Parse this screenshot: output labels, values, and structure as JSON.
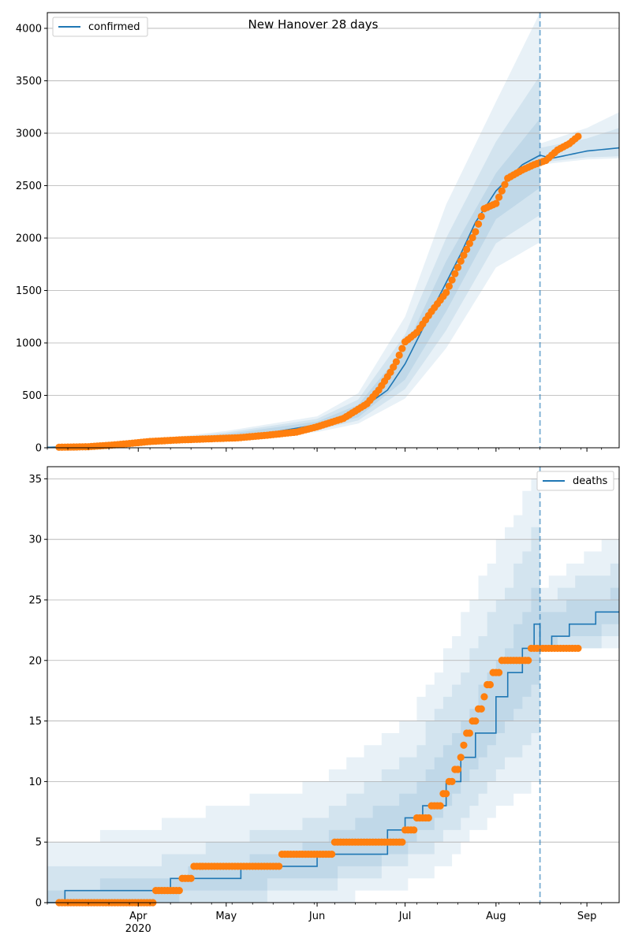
{
  "colors": {
    "model": "#1f77b4",
    "observed": "#ff7f0e",
    "band": "#1f77b4",
    "grid": "#b0b0b0"
  },
  "chart_data": [
    {
      "type": "line",
      "title": "New Hanover 28 days",
      "legend": {
        "label": "confirmed",
        "placement": "top-left"
      },
      "xlim": [
        "2020-03-01",
        "2020-09-12"
      ],
      "ylim": [
        0,
        4150
      ],
      "yticks": [
        0,
        500,
        1000,
        1500,
        2000,
        2500,
        3000,
        3500,
        4000
      ],
      "ytick_labels": [
        "0",
        "500",
        "1000",
        "1500",
        "2000",
        "2500",
        "3000",
        "3500",
        "4000"
      ],
      "grid": "horizontal",
      "forecast_start": "2020-08-16",
      "model": {
        "x": [
          "2020-03-01",
          "2020-03-15",
          "2020-04-01",
          "2020-04-15",
          "2020-05-01",
          "2020-05-15",
          "2020-06-01",
          "2020-06-15",
          "2020-06-25",
          "2020-07-01",
          "2020-07-10",
          "2020-07-20",
          "2020-07-25",
          "2020-08-01",
          "2020-08-10",
          "2020-08-16",
          "2020-08-20",
          "2020-09-01",
          "2020-09-12"
        ],
        "y": [
          5,
          15,
          40,
          80,
          110,
          140,
          220,
          350,
          550,
          800,
          1300,
          1850,
          2150,
          2450,
          2700,
          2790,
          2760,
          2830,
          2860
        ]
      },
      "bands": [
        {
          "x": [
            "2020-03-01",
            "2020-04-01",
            "2020-05-01",
            "2020-06-01",
            "2020-06-15",
            "2020-07-01",
            "2020-07-15",
            "2020-08-01",
            "2020-08-16"
          ],
          "lower": [
            5,
            30,
            90,
            190,
            290,
            650,
            1300,
            2180,
            2480
          ],
          "upper": [
            5,
            50,
            130,
            250,
            410,
            950,
            1780,
            2620,
            3140
          ]
        },
        {
          "x": [
            "2020-03-01",
            "2020-04-01",
            "2020-05-01",
            "2020-06-01",
            "2020-06-15",
            "2020-07-01",
            "2020-07-15",
            "2020-08-01",
            "2020-08-16"
          ],
          "lower": [
            5,
            25,
            80,
            170,
            260,
            560,
            1120,
            1950,
            2220
          ],
          "upper": [
            5,
            55,
            145,
            275,
            460,
            1080,
            2000,
            2920,
            3550
          ]
        },
        {
          "x": [
            "2020-03-01",
            "2020-04-01",
            "2020-05-01",
            "2020-06-01",
            "2020-06-15",
            "2020-07-01",
            "2020-07-15",
            "2020-08-01",
            "2020-08-16"
          ],
          "lower": [
            5,
            20,
            70,
            150,
            230,
            470,
            950,
            1720,
            1960
          ],
          "upper": [
            5,
            65,
            160,
            300,
            520,
            1250,
            2320,
            3300,
            4150
          ]
        },
        {
          "x": [
            "2020-08-16",
            "2020-09-01",
            "2020-09-12"
          ],
          "lower": [
            2720,
            2770,
            2780
          ],
          "upper": [
            2860,
            2950,
            3050
          ]
        },
        {
          "x": [
            "2020-08-16",
            "2020-09-01",
            "2020-09-12"
          ],
          "lower": [
            2700,
            2750,
            2760
          ],
          "upper": [
            2900,
            3050,
            3200
          ]
        }
      ],
      "observed": {
        "x": [
          "2020-03-05",
          "2020-03-15",
          "2020-03-25",
          "2020-04-05",
          "2020-04-15",
          "2020-04-25",
          "2020-05-05",
          "2020-05-15",
          "2020-05-25",
          "2020-06-01",
          "2020-06-10",
          "2020-06-18",
          "2020-06-22",
          "2020-06-26",
          "2020-06-28",
          "2020-07-01",
          "2020-07-05",
          "2020-07-10",
          "2020-07-15",
          "2020-07-20",
          "2020-07-25",
          "2020-07-28",
          "2020-08-01",
          "2020-08-05",
          "2020-08-10",
          "2020-08-14",
          "2020-08-18",
          "2020-08-22",
          "2020-08-26",
          "2020-08-29"
        ],
        "y": [
          5,
          10,
          30,
          60,
          75,
          85,
          95,
          120,
          150,
          200,
          280,
          420,
          550,
          720,
          820,
          1010,
          1100,
          1300,
          1480,
          1780,
          2060,
          2280,
          2330,
          2570,
          2650,
          2700,
          2740,
          2840,
          2900,
          2970
        ]
      }
    },
    {
      "type": "line",
      "title": "",
      "legend": {
        "label": "deaths",
        "placement": "top-right"
      },
      "xlim": [
        "2020-03-01",
        "2020-09-12"
      ],
      "ylim": [
        0,
        36
      ],
      "yticks": [
        0,
        5,
        10,
        15,
        20,
        25,
        30,
        35
      ],
      "ytick_labels": [
        "0",
        "5",
        "10",
        "15",
        "20",
        "25",
        "30",
        "35"
      ],
      "xticks": [
        "2020-04-01",
        "2020-05-01",
        "2020-06-01",
        "2020-07-01",
        "2020-08-01",
        "2020-09-01"
      ],
      "xtick_labels": [
        "Apr",
        "May",
        "Jun",
        "Jul",
        "Aug",
        "Sep"
      ],
      "xtick_year": {
        "date": "2020-04-01",
        "label": "2020"
      },
      "grid": "horizontal",
      "forecast_start": "2020-08-16",
      "model": {
        "x": [
          "2020-03-01",
          "2020-03-07",
          "2020-04-12",
          "2020-05-06",
          "2020-06-01",
          "2020-06-25",
          "2020-07-01",
          "2020-07-07",
          "2020-07-15",
          "2020-07-20",
          "2020-07-25",
          "2020-08-01",
          "2020-08-05",
          "2020-08-10",
          "2020-08-14",
          "2020-08-16",
          "2020-08-20",
          "2020-08-26",
          "2020-09-04",
          "2020-09-12"
        ],
        "y": [
          0,
          1,
          2,
          3,
          4,
          6,
          7,
          8,
          10,
          12,
          14,
          17,
          19,
          21,
          23,
          21,
          22,
          23,
          24,
          24
        ]
      },
      "bands": [
        {
          "x": [
            "2020-03-01",
            "2020-04-01",
            "2020-05-01",
            "2020-06-01",
            "2020-07-01",
            "2020-07-15",
            "2020-08-01",
            "2020-08-16"
          ],
          "lower": [
            0,
            0,
            1,
            2,
            4,
            7,
            13,
            18
          ],
          "upper": [
            1,
            2,
            3,
            5,
            9,
            13,
            20,
            27
          ]
        },
        {
          "x": [
            "2020-03-01",
            "2020-04-01",
            "2020-05-01",
            "2020-06-01",
            "2020-07-01",
            "2020-07-15",
            "2020-08-01",
            "2020-08-16"
          ],
          "lower": [
            0,
            0,
            0,
            1,
            3,
            5,
            10,
            14
          ],
          "upper": [
            3,
            3,
            5,
            7,
            12,
            17,
            25,
            32
          ]
        },
        {
          "x": [
            "2020-03-01",
            "2020-04-01",
            "2020-05-01",
            "2020-06-01",
            "2020-07-01",
            "2020-07-15",
            "2020-08-01",
            "2020-08-16"
          ],
          "lower": [
            0,
            0,
            0,
            0,
            1,
            3,
            7,
            10
          ],
          "upper": [
            5,
            6,
            8,
            10,
            15,
            21,
            30,
            36
          ]
        },
        {
          "x": [
            "2020-08-16",
            "2020-09-01",
            "2020-09-12"
          ],
          "lower": [
            21,
            22,
            23
          ],
          "upper": [
            24,
            25,
            26
          ]
        },
        {
          "x": [
            "2020-08-16",
            "2020-09-01",
            "2020-09-12"
          ],
          "lower": [
            21,
            21,
            22
          ],
          "upper": [
            25,
            27,
            28
          ]
        },
        {
          "x": [
            "2020-08-16",
            "2020-09-01",
            "2020-09-12"
          ],
          "lower": [
            21,
            21,
            21
          ],
          "upper": [
            26,
            29,
            31
          ]
        }
      ],
      "observed": {
        "x": [
          "2020-03-05",
          "2020-04-01",
          "2020-04-13",
          "2020-04-22",
          "2020-05-10",
          "2020-05-30",
          "2020-06-15",
          "2020-06-30",
          "2020-07-02",
          "2020-07-07",
          "2020-07-13",
          "2020-07-20",
          "2020-07-22",
          "2020-07-25",
          "2020-07-28",
          "2020-08-01",
          "2020-08-05",
          "2020-08-10",
          "2020-08-16",
          "2020-08-25",
          "2020-08-29"
        ],
        "y": [
          0,
          0,
          1,
          3,
          3,
          4,
          5,
          5,
          6,
          7,
          8,
          12,
          14,
          15,
          17,
          19,
          20,
          20,
          21,
          21,
          21
        ]
      }
    }
  ]
}
